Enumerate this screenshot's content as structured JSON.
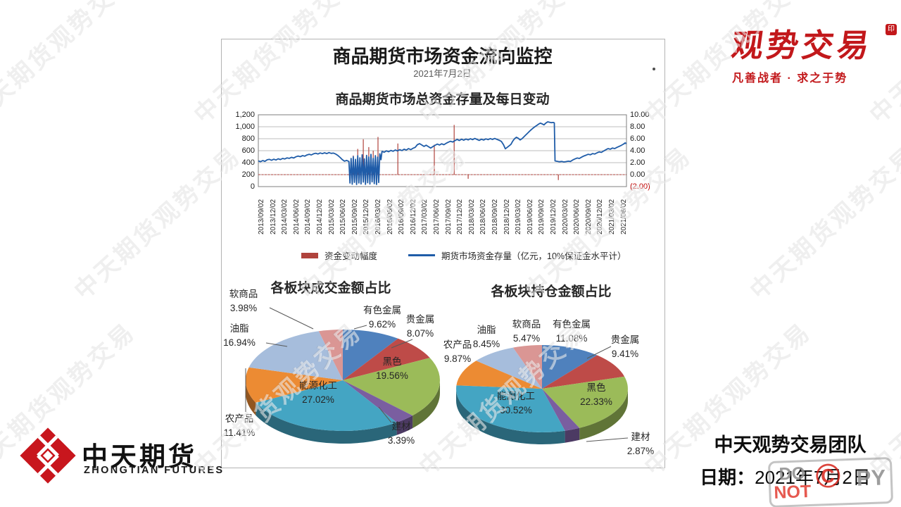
{
  "watermark": {
    "text": "中天期货观势交易"
  },
  "brand_top_right": {
    "name": "观势交易",
    "seal": "印",
    "tagline": "凡善战者 · 求之于势",
    "color": "#c2181b"
  },
  "brand_bottom_left": {
    "name": "中天期货",
    "subtitle": "ZHONGTIAN FUTURES",
    "logo_color": "#c8161d"
  },
  "footer_right": {
    "team": "中天观势交易团队",
    "date_label": "日期：",
    "date": "2021年7月2日",
    "stamp": {
      "line1": "DO",
      "line2": "NOT",
      "symbol": "©",
      "right": "PY"
    }
  },
  "panel": {
    "title": "商品期货市场资金流向监控",
    "date": "2021年7月2日"
  },
  "chart_data": [
    {
      "type": "line",
      "title": "商品期货市场总资金存量及每日变动",
      "x_labels": [
        "2013/09/02",
        "2013/12/02",
        "2014/03/02",
        "2014/06/02",
        "2014/09/02",
        "2014/12/02",
        "2015/03/02",
        "2015/06/02",
        "2015/09/02",
        "2015/12/02",
        "2016/03/02",
        "2016/06/02",
        "2016/09/02",
        "2016/12/02",
        "2017/03/02",
        "2017/06/02",
        "2017/09/02",
        "2017/12/02",
        "2018/03/02",
        "2018/06/02",
        "2018/09/02",
        "2018/12/02",
        "2019/03/02",
        "2019/06/02",
        "2019/09/02",
        "2019/12/02",
        "2020/03/02",
        "2020/06/02",
        "2020/09/02",
        "2020/12/02",
        "2021/03/02",
        "2021/06/02"
      ],
      "y_left": {
        "ticks": [
          "1,200",
          "1,000",
          "800",
          "600",
          "400",
          "200",
          "0"
        ],
        "min": 0,
        "max": 1200
      },
      "y_right": {
        "ticks": [
          "10.00",
          "8.00",
          "6.00",
          "4.00",
          "2.00",
          "0.00",
          "(2.00)"
        ],
        "min": -2,
        "max": 10,
        "negative_color": "#c00000"
      },
      "grid": true,
      "legend_position": "bottom",
      "series": [
        {
          "name": "资金变动幅度",
          "type": "bar",
          "axis": "right",
          "color": "#b0433c",
          "baseline": 0,
          "spikes": [
            [
              0.258,
              3.2
            ],
            [
              0.27,
              4.3
            ],
            [
              0.285,
              5.9
            ],
            [
              0.3,
              4.6
            ],
            [
              0.312,
              4.0
            ],
            [
              0.325,
              6.3
            ],
            [
              0.379,
              5.2
            ],
            [
              0.478,
              5.0
            ],
            [
              0.532,
              8.3
            ],
            [
              0.57,
              -0.7
            ],
            [
              0.815,
              -0.9
            ]
          ]
        },
        {
          "name": "期货市场资金存量（亿元，10%保证金水平计）",
          "type": "line",
          "axis": "left",
          "color": "#1f5ca8",
          "points": [
            [
              0,
              430
            ],
            [
              0.006,
              416
            ],
            [
              0.012,
              435
            ],
            [
              0.018,
              422
            ],
            [
              0.024,
              448
            ],
            [
              0.03,
              455
            ],
            [
              0.036,
              440
            ],
            [
              0.042,
              458
            ],
            [
              0.048,
              445
            ],
            [
              0.054,
              465
            ],
            [
              0.06,
              452
            ],
            [
              0.066,
              470
            ],
            [
              0.072,
              462
            ],
            [
              0.078,
              480
            ],
            [
              0.084,
              472
            ],
            [
              0.09,
              490
            ],
            [
              0.096,
              478
            ],
            [
              0.102,
              498
            ],
            [
              0.108,
              510
            ],
            [
              0.114,
              500
            ],
            [
              0.12,
              518
            ],
            [
              0.126,
              508
            ],
            [
              0.132,
              528
            ],
            [
              0.138,
              540
            ],
            [
              0.144,
              530
            ],
            [
              0.15,
              548
            ],
            [
              0.156,
              558
            ],
            [
              0.162,
              545
            ],
            [
              0.168,
              562
            ],
            [
              0.174,
              550
            ],
            [
              0.18,
              565
            ],
            [
              0.186,
              552
            ],
            [
              0.192,
              568
            ],
            [
              0.198,
              555
            ],
            [
              0.204,
              560
            ],
            [
              0.21,
              545
            ],
            [
              0.216,
              520
            ],
            [
              0.222,
              488
            ],
            [
              0.228,
              452
            ],
            [
              0.234,
              425
            ],
            [
              0.24,
              438
            ],
            [
              0.246,
              420
            ],
            [
              0.249,
              60
            ],
            [
              0.252,
              470
            ],
            [
              0.255,
              40
            ],
            [
              0.258,
              500
            ],
            [
              0.261,
              70
            ],
            [
              0.264,
              455
            ],
            [
              0.267,
              35
            ],
            [
              0.27,
              515
            ],
            [
              0.273,
              60
            ],
            [
              0.276,
              480
            ],
            [
              0.279,
              45
            ],
            [
              0.282,
              532
            ],
            [
              0.285,
              75
            ],
            [
              0.288,
              462
            ],
            [
              0.291,
              38
            ],
            [
              0.294,
              522
            ],
            [
              0.297,
              65
            ],
            [
              0.3,
              495
            ],
            [
              0.303,
              42
            ],
            [
              0.306,
              540
            ],
            [
              0.309,
              80
            ],
            [
              0.312,
              472
            ],
            [
              0.315,
              50
            ],
            [
              0.318,
              518
            ],
            [
              0.321,
              35
            ],
            [
              0.324,
              492
            ],
            [
              0.327,
              68
            ],
            [
              0.33,
              548
            ],
            [
              0.333,
              450
            ],
            [
              0.336,
              588
            ],
            [
              0.342,
              575
            ],
            [
              0.348,
              598
            ],
            [
              0.354,
              582
            ],
            [
              0.36,
              605
            ],
            [
              0.366,
              590
            ],
            [
              0.372,
              612
            ],
            [
              0.378,
              596
            ],
            [
              0.384,
              618
            ],
            [
              0.39,
              602
            ],
            [
              0.396,
              625
            ],
            [
              0.402,
              610
            ],
            [
              0.408,
              635
            ],
            [
              0.414,
              618
            ],
            [
              0.42,
              640
            ],
            [
              0.426,
              655
            ],
            [
              0.432,
              700
            ],
            [
              0.438,
              718
            ],
            [
              0.444,
              695
            ],
            [
              0.45,
              672
            ],
            [
              0.456,
              692
            ],
            [
              0.462,
              668
            ],
            [
              0.468,
              645
            ],
            [
              0.474,
              668
            ],
            [
              0.48,
              690
            ],
            [
              0.486,
              710
            ],
            [
              0.492,
              695
            ],
            [
              0.498,
              715
            ],
            [
              0.504,
              700
            ],
            [
              0.51,
              722
            ],
            [
              0.516,
              742
            ],
            [
              0.522,
              758
            ],
            [
              0.528,
              745
            ],
            [
              0.534,
              768
            ],
            [
              0.54,
              788
            ],
            [
              0.546,
              770
            ],
            [
              0.552,
              792
            ],
            [
              0.558,
              775
            ],
            [
              0.564,
              795
            ],
            [
              0.57,
              780
            ],
            [
              0.576,
              800
            ],
            [
              0.582,
              785
            ],
            [
              0.588,
              805
            ],
            [
              0.594,
              788
            ],
            [
              0.6,
              772
            ],
            [
              0.606,
              792
            ],
            [
              0.612,
              778
            ],
            [
              0.618,
              798
            ],
            [
              0.624,
              785
            ],
            [
              0.63,
              802
            ],
            [
              0.636,
              788
            ],
            [
              0.642,
              805
            ],
            [
              0.648,
              790
            ],
            [
              0.654,
              775
            ],
            [
              0.66,
              755
            ],
            [
              0.666,
              700
            ],
            [
              0.671,
              632
            ],
            [
              0.676,
              655
            ],
            [
              0.681,
              680
            ],
            [
              0.686,
              705
            ],
            [
              0.691,
              760
            ],
            [
              0.696,
              800
            ],
            [
              0.701,
              825
            ],
            [
              0.706,
              808
            ],
            [
              0.711,
              780
            ],
            [
              0.716,
              800
            ],
            [
              0.721,
              830
            ],
            [
              0.726,
              860
            ],
            [
              0.731,
              890
            ],
            [
              0.736,
              920
            ],
            [
              0.741,
              950
            ],
            [
              0.746,
              975
            ],
            [
              0.751,
              1000
            ],
            [
              0.756,
              1020
            ],
            [
              0.761,
              1042
            ],
            [
              0.766,
              1060
            ],
            [
              0.771,
              1048
            ],
            [
              0.776,
              1032
            ],
            [
              0.781,
              1062
            ],
            [
              0.786,
              1082
            ],
            [
              0.791,
              1075
            ],
            [
              0.796,
              1068
            ],
            [
              0.801,
              1072
            ],
            [
              0.804,
              1065
            ],
            [
              0.806,
              430
            ],
            [
              0.812,
              422
            ],
            [
              0.818,
              415
            ],
            [
              0.824,
              420
            ],
            [
              0.83,
              412
            ],
            [
              0.836,
              418
            ],
            [
              0.842,
              425
            ],
            [
              0.848,
              420
            ],
            [
              0.854,
              445
            ],
            [
              0.86,
              462
            ],
            [
              0.866,
              478
            ],
            [
              0.872,
              470
            ],
            [
              0.878,
              492
            ],
            [
              0.884,
              510
            ],
            [
              0.89,
              525
            ],
            [
              0.896,
              540
            ],
            [
              0.902,
              532
            ],
            [
              0.908,
              552
            ],
            [
              0.914,
              545
            ],
            [
              0.92,
              565
            ],
            [
              0.926,
              580
            ],
            [
              0.932,
              572
            ],
            [
              0.938,
              595
            ],
            [
              0.944,
              615
            ],
            [
              0.95,
              635
            ],
            [
              0.956,
              625
            ],
            [
              0.962,
              645
            ],
            [
              0.968,
              635
            ],
            [
              0.974,
              655
            ],
            [
              0.98,
              672
            ],
            [
              0.986,
              690
            ],
            [
              0.992,
              710
            ],
            [
              0.996,
              730
            ],
            [
              1,
              722
            ]
          ]
        }
      ]
    },
    {
      "type": "pie",
      "title": "各板块成交金额占比",
      "slices": [
        {
          "label": "有色金属",
          "value": 9.62,
          "pct": "9.62%",
          "color": "#4f81bd"
        },
        {
          "label": "贵金属",
          "value": 8.07,
          "pct": "8.07%",
          "color": "#be4b48"
        },
        {
          "label": "黑色",
          "value": 19.56,
          "pct": "19.56%",
          "color": "#9bbb59"
        },
        {
          "label": "建材",
          "value": 3.39,
          "pct": "3.39%",
          "color": "#7a5ea0"
        },
        {
          "label": "能源化工",
          "value": 27.02,
          "pct": "27.02%",
          "color": "#44a5c3"
        },
        {
          "label": "农产品",
          "value": 11.41,
          "pct": "11.41%",
          "color": "#ec8b33"
        },
        {
          "label": "油脂",
          "value": 16.94,
          "pct": "16.94%",
          "color": "#a6bddc"
        },
        {
          "label": "软商品",
          "value": 3.98,
          "pct": "3.98%",
          "color": "#da9694"
        }
      ]
    },
    {
      "type": "pie",
      "title": "各板块持仓金额占比",
      "slices": [
        {
          "label": "有色金属",
          "value": 11.08,
          "pct": "11.08%",
          "color": "#4f81bd"
        },
        {
          "label": "贵金属",
          "value": 9.41,
          "pct": "9.41%",
          "color": "#be4b48"
        },
        {
          "label": "黑色",
          "value": 22.33,
          "pct": "22.33%",
          "color": "#9bbb59"
        },
        {
          "label": "建材",
          "value": 2.87,
          "pct": "2.87%",
          "color": "#7a5ea0"
        },
        {
          "label": "能源化工",
          "value": 30.52,
          "pct": "30.52%",
          "color": "#44a5c3"
        },
        {
          "label": "农产品",
          "value": 9.87,
          "pct": "9.87%",
          "color": "#ec8b33"
        },
        {
          "label": "油脂",
          "value": 8.45,
          "pct": "8.45%",
          "color": "#a6bddc"
        },
        {
          "label": "软商品",
          "value": 5.47,
          "pct": "5.47%",
          "color": "#da9694"
        }
      ]
    }
  ]
}
